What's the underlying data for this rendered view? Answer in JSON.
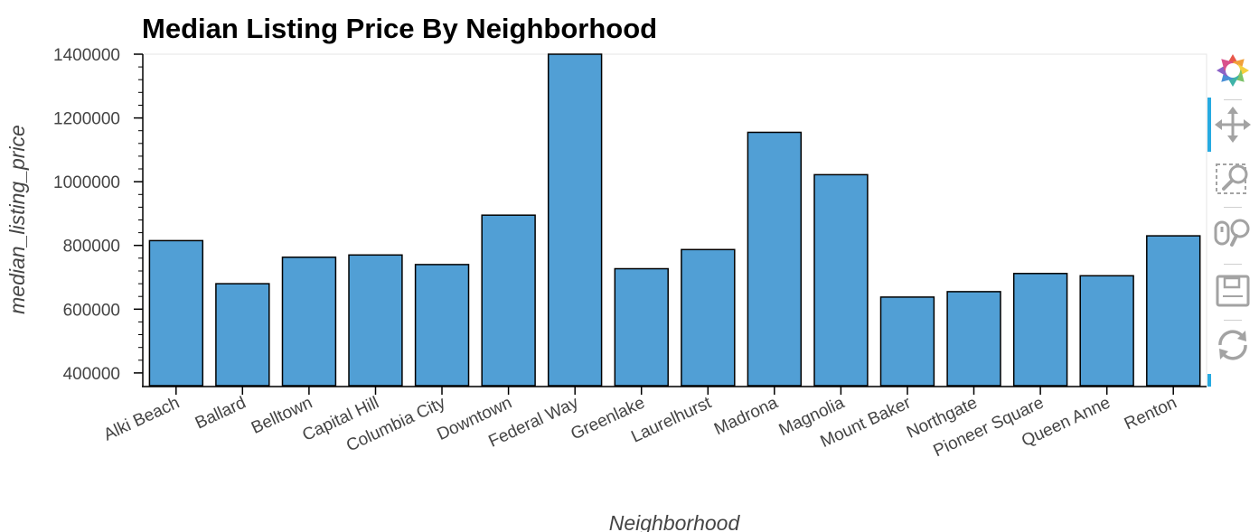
{
  "chart_data": {
    "type": "bar",
    "title": "Median Listing Price By Neighborhood",
    "xlabel": "Neighborhood",
    "ylabel": "median_listing_price",
    "categories": [
      "Alki Beach",
      "Ballard",
      "Belltown",
      "Capital Hill",
      "Columbia City",
      "Downtown",
      "Federal Way",
      "Greenlake",
      "Laurelhurst",
      "Madrona",
      "Magnolia",
      "Mount Baker",
      "Northgate",
      "Pioneer Square",
      "Queen Anne",
      "Renton"
    ],
    "values": [
      815000,
      680000,
      763000,
      770000,
      740000,
      895000,
      1400000,
      727000,
      787000,
      1155000,
      1022000,
      638000,
      655000,
      712000,
      705000,
      830000
    ],
    "ylim": [
      360000,
      1400000
    ],
    "yticks": [
      "400000",
      "600000",
      "800000",
      "1000000",
      "1200000",
      "1400000"
    ],
    "grid": false,
    "bar_color": "#519fd5"
  },
  "toolbar": {
    "tools": [
      "bokeh-logo-icon",
      "pan-icon",
      "box-zoom-icon",
      "wheel-zoom-icon",
      "save-icon",
      "reset-icon"
    ],
    "active_color": "#26aae1"
  }
}
